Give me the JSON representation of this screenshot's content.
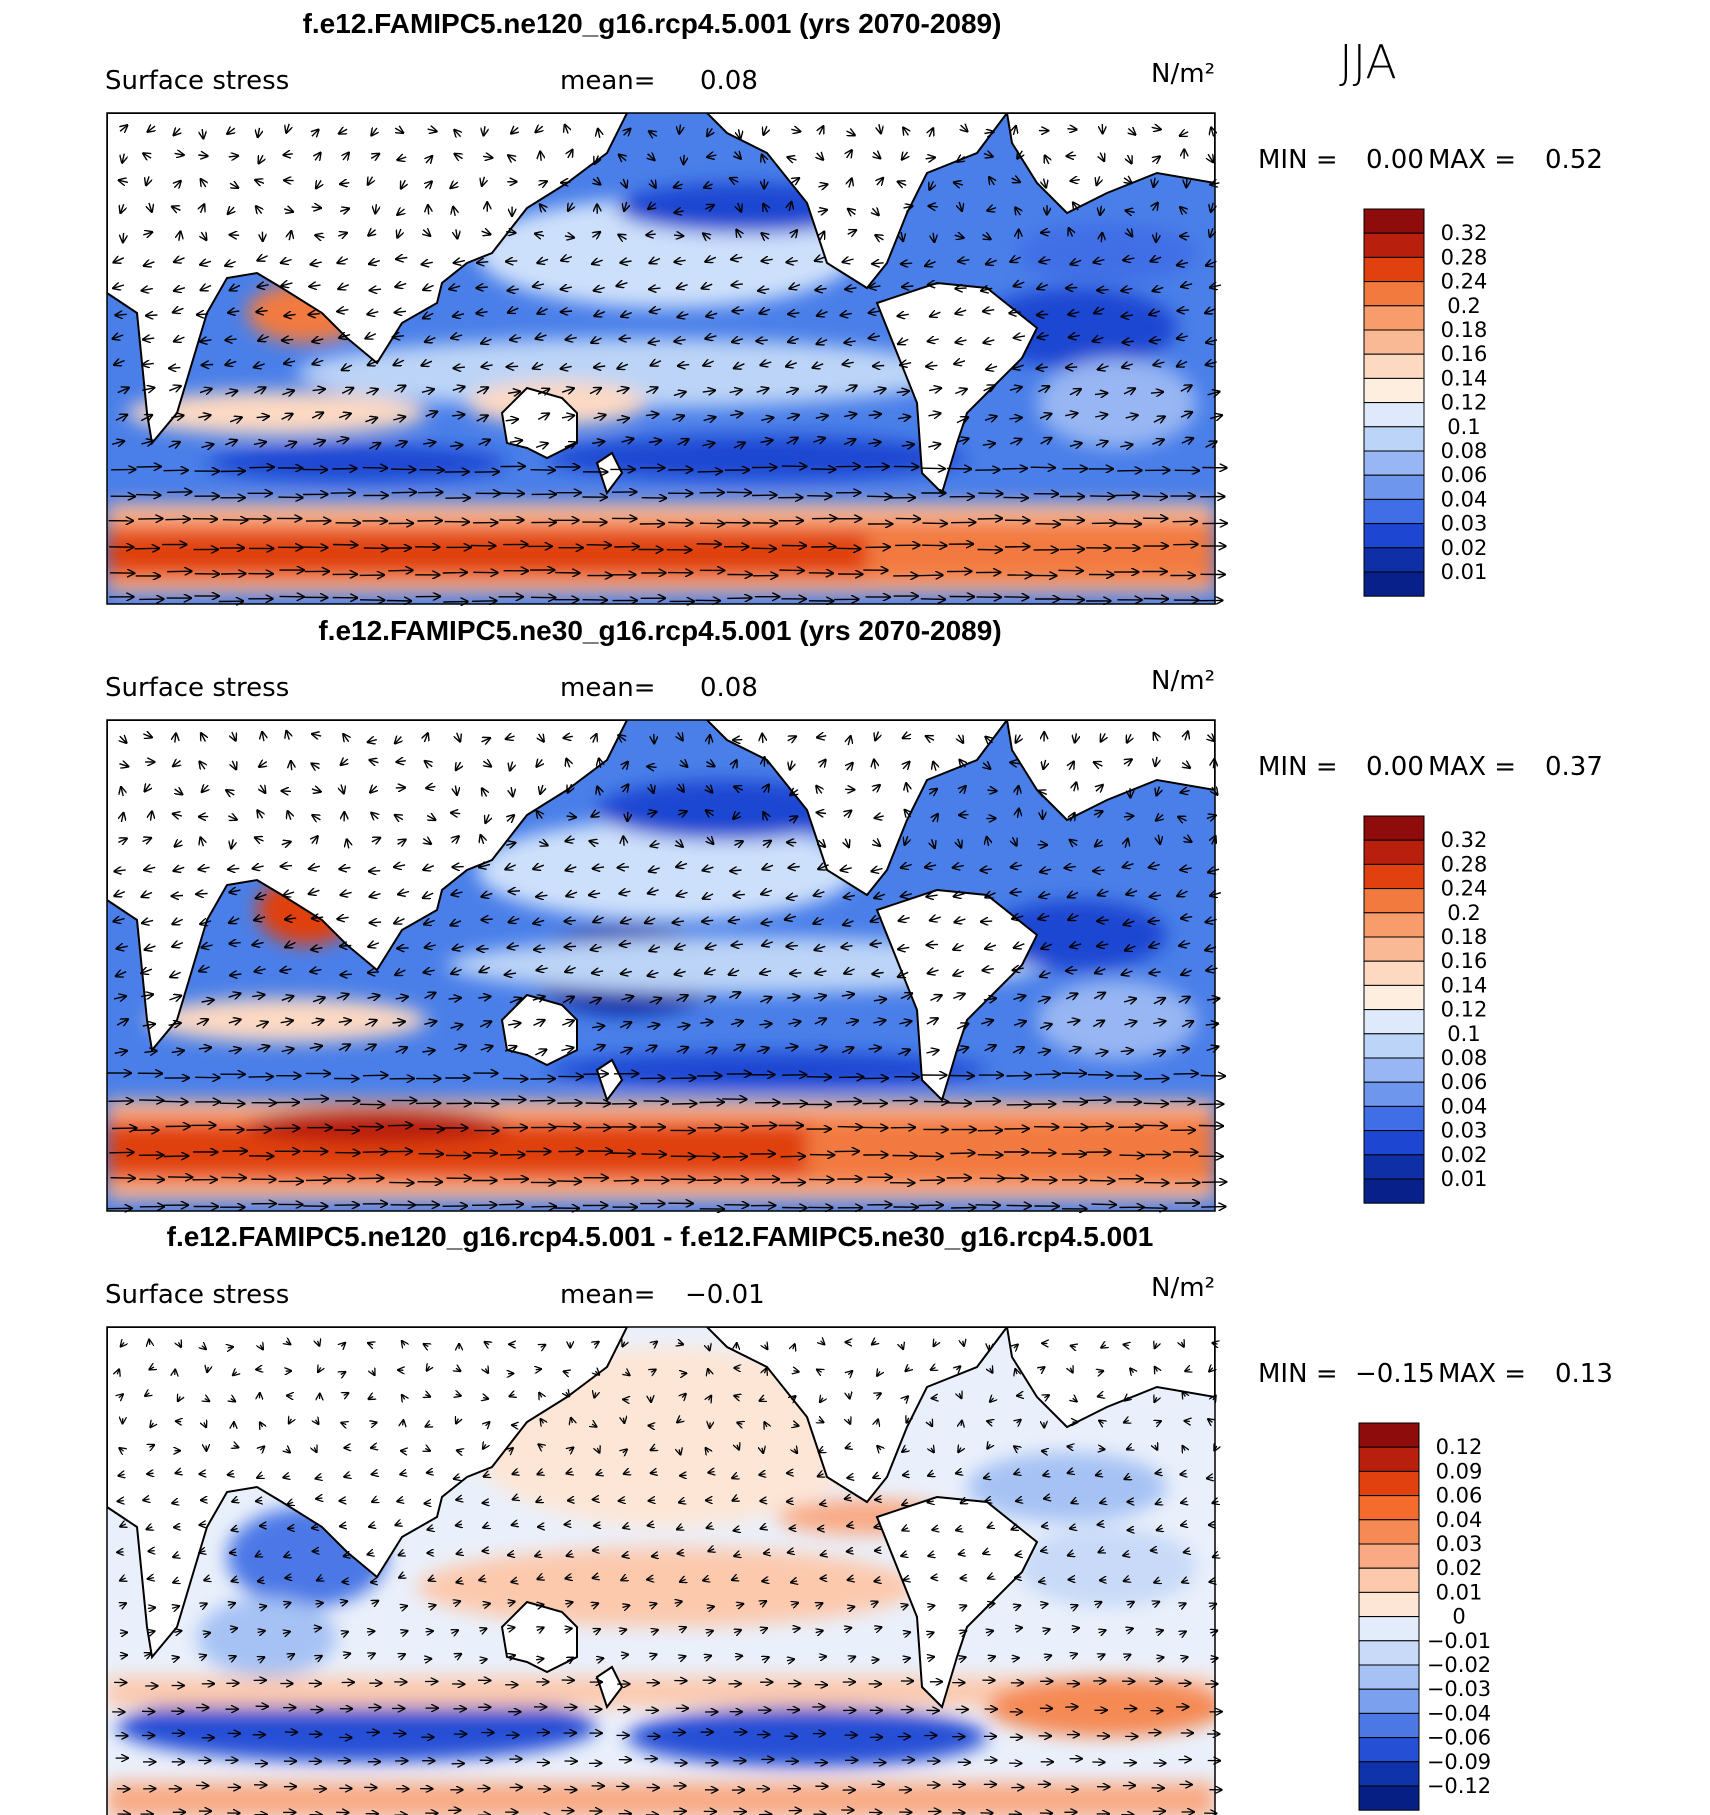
{
  "season_label": "JJA",
  "panels": [
    {
      "id": "p1",
      "title": "f.e12.FAMIPC5.ne120_g16.rcp4.5.001 (yrs 2070-2089)",
      "variable": "Surface stress",
      "mean_label": "mean=",
      "mean_value": "0.08",
      "units": "N/m²",
      "min_label": "MIN =",
      "min_value": "0.00",
      "max_label": "MAX =",
      "max_value": "0.52",
      "colorbar_labels": [
        "0.32",
        "0.28",
        "0.24",
        "0.2",
        "0.18",
        "0.16",
        "0.14",
        "0.12",
        "0.1",
        "0.08",
        "0.06",
        "0.04",
        "0.03",
        "0.02",
        "0.01"
      ],
      "colorbar_colors": [
        "#8e0c0c",
        "#b81f0c",
        "#e0410e",
        "#f27a3f",
        "#f79c6a",
        "#fab995",
        "#fdd9c2",
        "#fdeedf",
        "#deeafb",
        "#bcd4f7",
        "#97b6f3",
        "#6d96ec",
        "#3f6ee6",
        "#1d46d2",
        "#0e2fa6",
        "#07208a"
      ]
    },
    {
      "id": "p2",
      "title": "f.e12.FAMIPC5.ne30_g16.rcp4.5.001 (yrs 2070-2089)",
      "variable": "Surface stress",
      "mean_label": "mean=",
      "mean_value": "0.08",
      "units": "N/m²",
      "min_label": "MIN =",
      "min_value": "0.00",
      "max_label": "MAX =",
      "max_value": "0.37",
      "colorbar_labels": [
        "0.32",
        "0.28",
        "0.24",
        "0.2",
        "0.18",
        "0.16",
        "0.14",
        "0.12",
        "0.1",
        "0.08",
        "0.06",
        "0.04",
        "0.03",
        "0.02",
        "0.01"
      ],
      "colorbar_colors": [
        "#8e0c0c",
        "#b81f0c",
        "#e0410e",
        "#f27a3f",
        "#f79c6a",
        "#fab995",
        "#fdd9c2",
        "#fdeedf",
        "#deeafb",
        "#bcd4f7",
        "#97b6f3",
        "#6d96ec",
        "#3f6ee6",
        "#1d46d2",
        "#0e2fa6",
        "#07208a"
      ]
    },
    {
      "id": "p3",
      "title": "f.e12.FAMIPC5.ne120_g16.rcp4.5.001 - f.e12.FAMIPC5.ne30_g16.rcp4.5.001",
      "variable": "Surface stress",
      "mean_label": "mean=",
      "mean_value": "−0.01",
      "units": "N/m²",
      "min_label": "MIN =",
      "min_value": "−0.15",
      "max_label": "MAX =",
      "max_value": "0.13",
      "colorbar_labels": [
        "0.12",
        "0.09",
        "0.06",
        "0.04",
        "0.03",
        "0.02",
        "0.01",
        "0",
        "−0.01",
        "−0.02",
        "−0.03",
        "−0.04",
        "−0.06",
        "−0.09",
        "−0.12"
      ],
      "colorbar_colors": [
        "#8e0c0c",
        "#b81f0c",
        "#e0410e",
        "#f56b2b",
        "#f58a55",
        "#f9aa85",
        "#fcc9ad",
        "#fde6d6",
        "#e3ecfb",
        "#c8daf8",
        "#a6c2f4",
        "#7aa0ee",
        "#4c78e6",
        "#2550d6",
        "#0f33aa",
        "#061f85"
      ]
    }
  ]
}
